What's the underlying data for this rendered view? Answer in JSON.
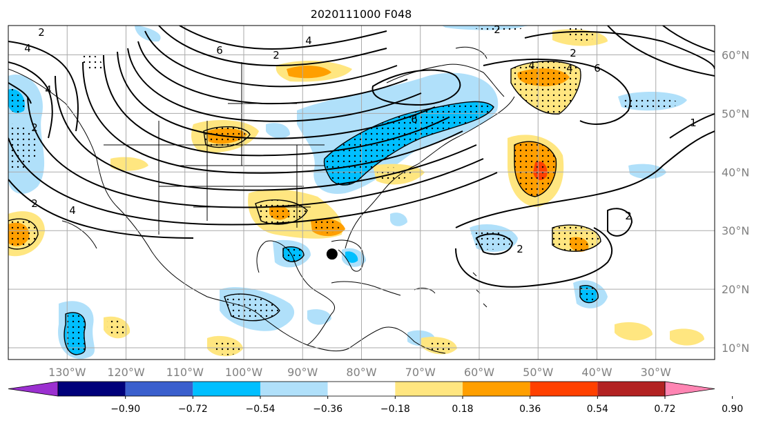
{
  "title": "2020111000 F048",
  "map": {
    "lon_labels": [
      "130°W",
      "120°W",
      "110°W",
      "100°W",
      "90°W",
      "80°W",
      "70°W",
      "60°W",
      "50°W",
      "40°W",
      "30°W"
    ],
    "lat_labels": [
      "60°N",
      "50°N",
      "40°N",
      "30°N",
      "20°N",
      "10°N"
    ],
    "lon_values": [
      -130,
      -120,
      -110,
      -100,
      -90,
      -80,
      -70,
      -60,
      -50,
      -40,
      -30
    ],
    "lat_values": [
      60,
      50,
      40,
      30,
      20,
      10
    ],
    "lon_range": [
      -140,
      -20
    ],
    "lat_range": [
      8,
      65
    ],
    "grid": true,
    "contour_labels": [
      "2",
      "4",
      "6",
      "4",
      "2",
      "4",
      "6",
      "2",
      "4",
      "6",
      "1",
      "2",
      "2",
      "2",
      "2",
      "4",
      "2",
      "4"
    ],
    "marker": {
      "lon": -85,
      "lat": 26
    }
  },
  "colorbar": {
    "ticks": [
      "−0.90",
      "−0.72",
      "−0.54",
      "−0.36",
      "−0.18",
      "0.18",
      "0.36",
      "0.54",
      "0.72",
      "0.90"
    ],
    "colors": [
      "#9b30d0",
      "#00007a",
      "#3a5fcd",
      "#00bfff",
      "#b0e0fa",
      "#ffffff",
      "#ffe680",
      "#ff9f00",
      "#ff4000",
      "#b22222",
      "#ff85b3"
    ]
  }
}
